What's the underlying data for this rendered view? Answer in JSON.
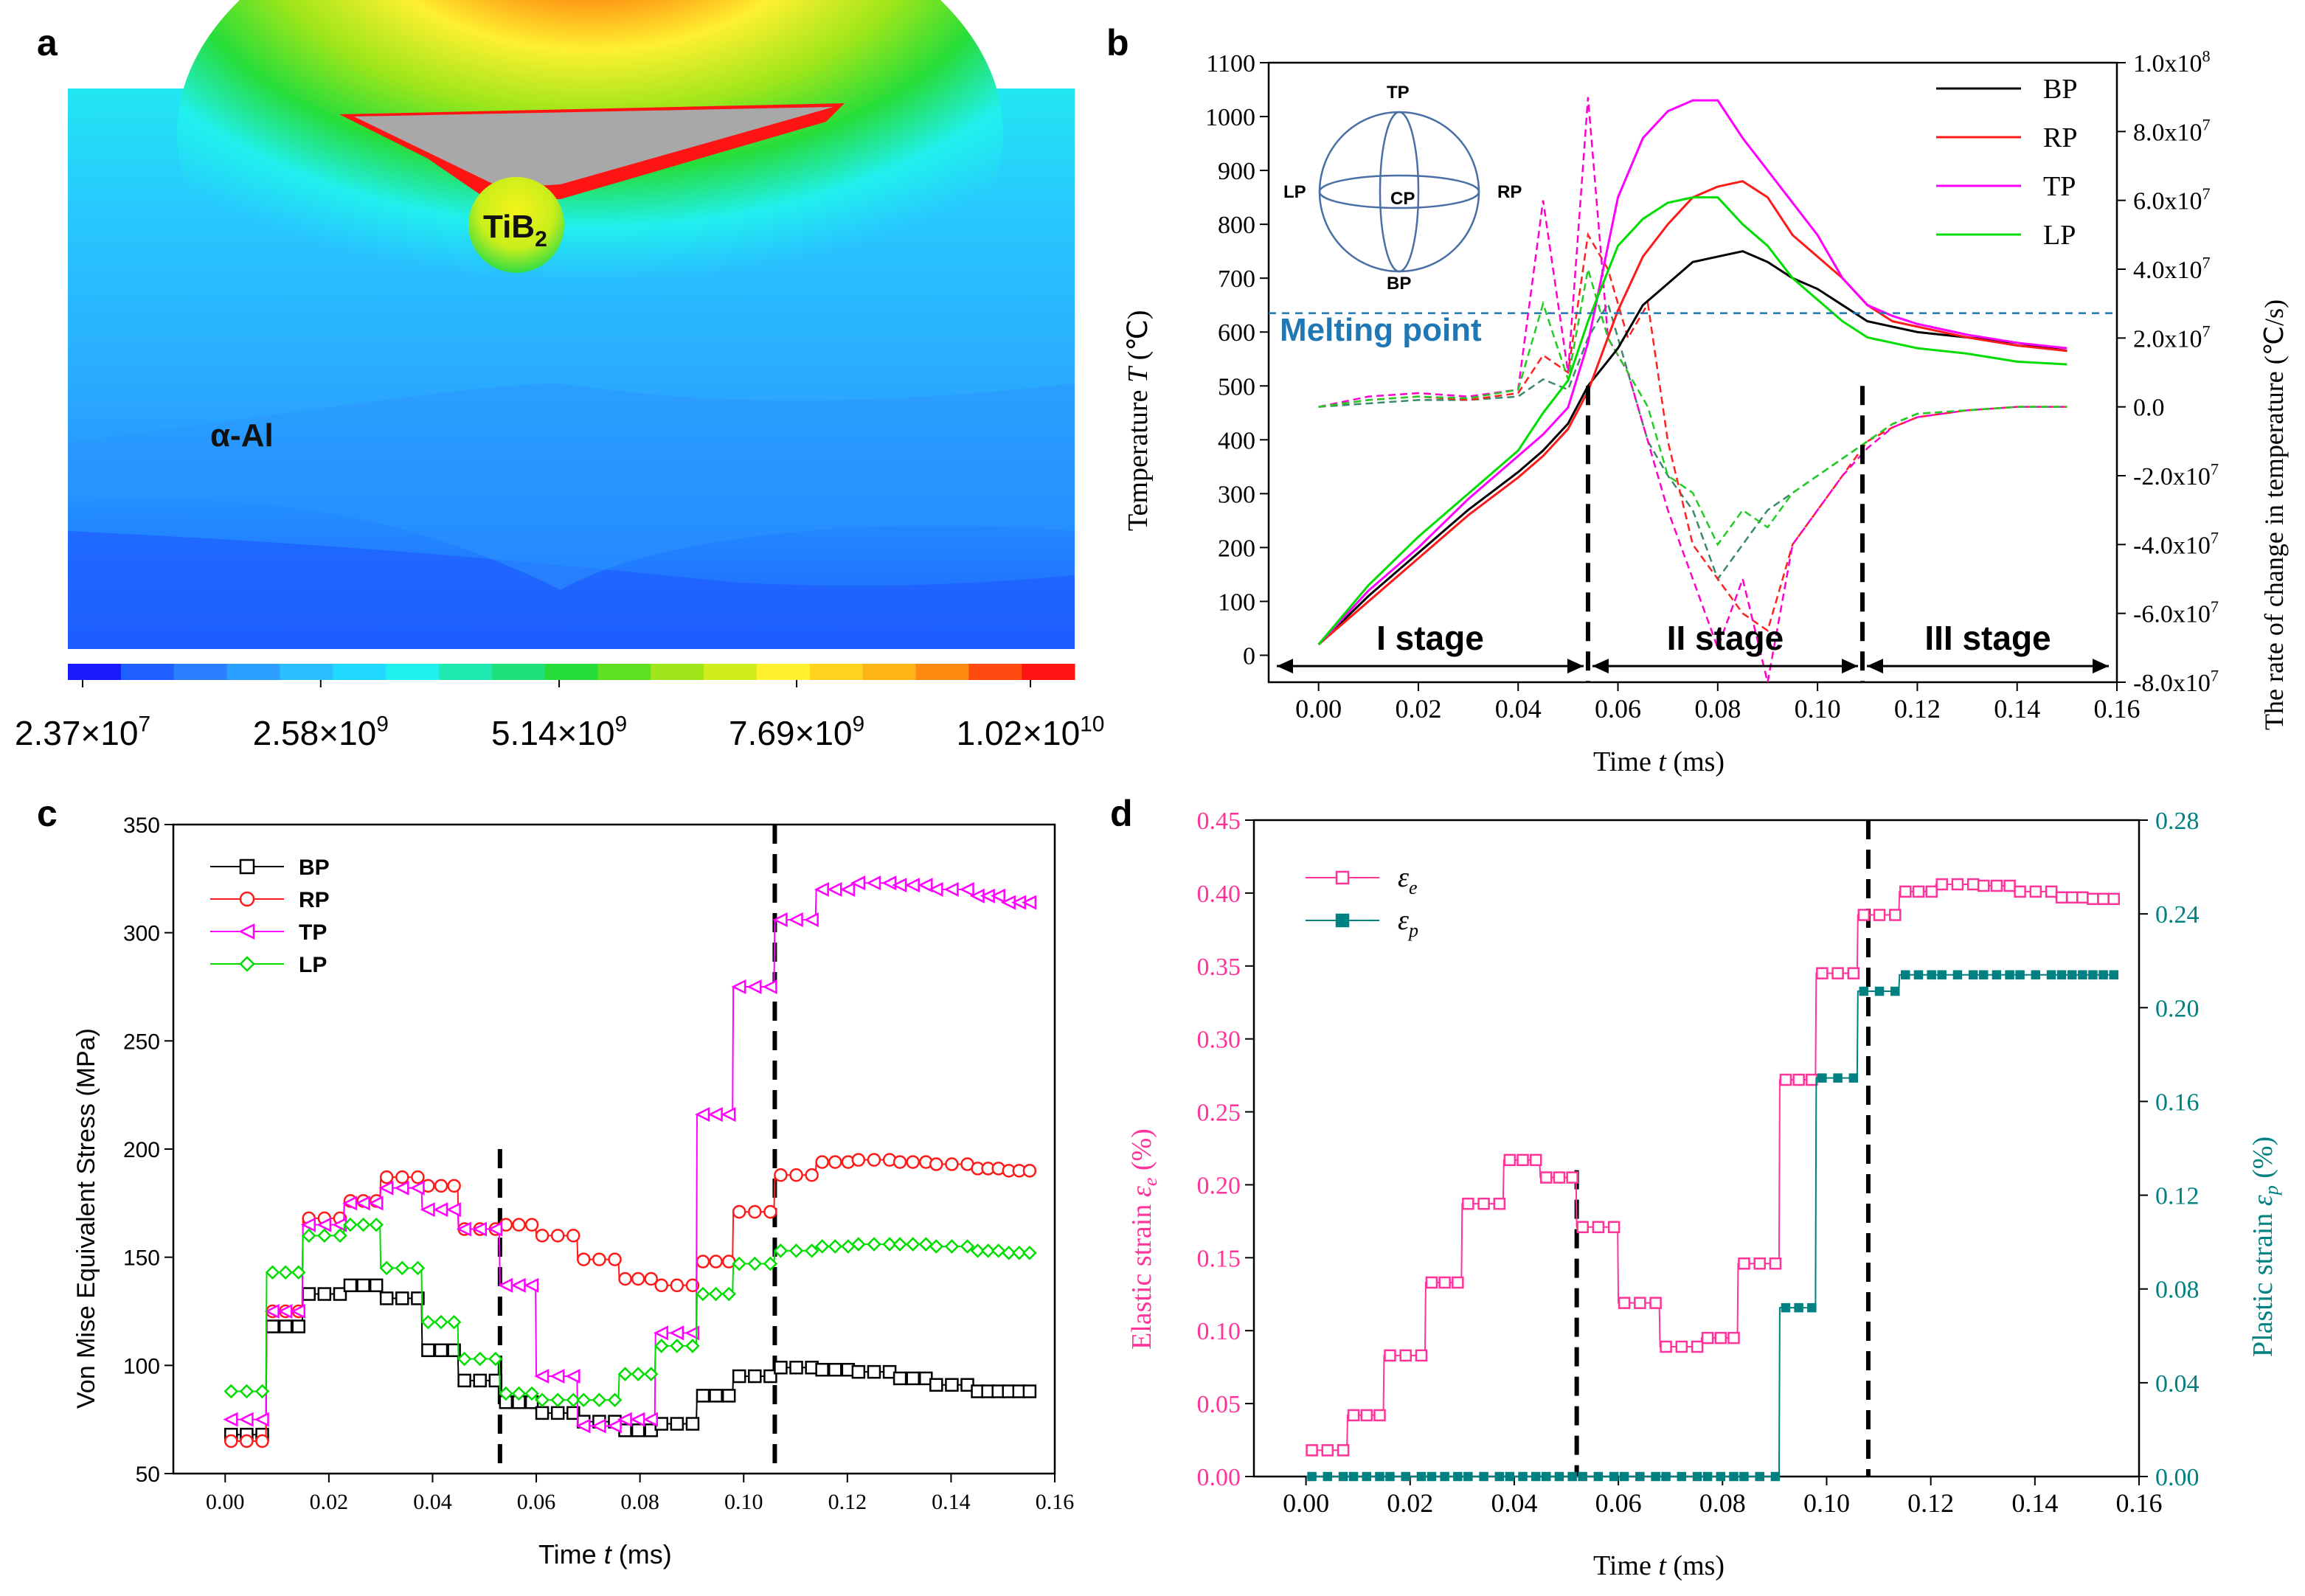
{
  "panel_labels": {
    "a": "a",
    "b": "b",
    "c": "c",
    "d": "d"
  },
  "colors": {
    "BP": "#000000",
    "RP": "#ff1a1a",
    "TP": "#ff00ff",
    "LP": "#00dd00",
    "rate_BP": "#3a8a6a",
    "rate_RP": "#ff2020",
    "rate_TP": "#ff00cc",
    "rate_LP": "#22cc22",
    "melting": "#1f77b4",
    "elastic": "#ff3399",
    "plastic": "#008080"
  },
  "chart_data": [
    {
      "panel": "a",
      "type": "heatmap",
      "labels": {
        "particle": "TiB",
        "particle_sub": "2",
        "matrix": "α-Al"
      },
      "colorbar": {
        "colors": [
          "#1a1aff",
          "#1f5fff",
          "#2a7fff",
          "#2ba0ff",
          "#29bfff",
          "#22d9ff",
          "#20f0ee",
          "#1fe8b0",
          "#20e07a",
          "#26dd3a",
          "#5fe020",
          "#9ee61a",
          "#cfee1c",
          "#fff030",
          "#ffd21e",
          "#ffb416",
          "#ff8a10",
          "#ff4a12",
          "#ff1414"
        ],
        "ticks": [
          "2.37×10",
          "2.58×10",
          "5.14×10",
          "7.69×10",
          "1.02×10"
        ],
        "exponents": [
          "7",
          "9",
          "9",
          "9",
          "10"
        ],
        "tick_values": [
          23700000.0,
          2580000000.0,
          5140000000.0,
          7690000000.0,
          10200000000.0
        ]
      }
    },
    {
      "panel": "b",
      "type": "line",
      "xlabel": "Time",
      "xlabel_var": "t",
      "xlabel_unit": "(ms)",
      "ylabel": "Temperature",
      "ylabel_var": "T",
      "ylabel_unit": "(℃)",
      "y2label": "The rate of change in temperature (℃/s)",
      "xlim": [
        -0.01,
        0.16
      ],
      "ylim": [
        -50,
        1100
      ],
      "y2lim": [
        -80000000.0,
        100000000.0
      ],
      "xticks": [
        "0.00",
        "0.02",
        "0.04",
        "0.06",
        "0.08",
        "0.10",
        "0.12",
        "0.14",
        "0.16"
      ],
      "yticks": [
        "0",
        "100",
        "200",
        "300",
        "400",
        "500",
        "600",
        "700",
        "800",
        "900",
        "1000",
        "1100"
      ],
      "y2ticks": [
        "-8.0x10",
        "-6.0x10",
        "-4.0x10",
        "-2.0x10",
        "0.0",
        "2.0x10",
        "4.0x10",
        "6.0x10",
        "8.0x10",
        "1.0x10"
      ],
      "y2tick_exp": [
        "7",
        "7",
        "7",
        "7",
        "",
        "7",
        "7",
        "7",
        "7",
        "8"
      ],
      "y2tick_values": [
        -80000000.0,
        -60000000.0,
        -40000000.0,
        -20000000.0,
        0,
        20000000.0,
        40000000.0,
        60000000.0,
        80000000.0,
        100000000.0
      ],
      "melting_point": {
        "label": "Melting point",
        "value": 635
      },
      "stage_dividers": [
        0.054,
        0.109
      ],
      "stages": [
        "I stage",
        "II stage",
        "III stage"
      ],
      "sphere_labels": {
        "top": "TP",
        "left": "LP",
        "center": "CP",
        "right": "RP",
        "bottom": "BP"
      },
      "series": [
        {
          "name": "BP",
          "x": [
            0,
            0.01,
            0.02,
            0.03,
            0.04,
            0.045,
            0.05,
            0.054,
            0.06,
            0.065,
            0.07,
            0.075,
            0.08,
            0.085,
            0.09,
            0.095,
            0.1,
            0.105,
            0.11,
            0.115,
            0.12,
            0.13,
            0.14,
            0.15
          ],
          "values": [
            20,
            110,
            190,
            270,
            340,
            380,
            430,
            500,
            570,
            650,
            690,
            730,
            740,
            750,
            730,
            700,
            680,
            650,
            620,
            610,
            600,
            590,
            580,
            565
          ]
        },
        {
          "name": "RP",
          "x": [
            0,
            0.01,
            0.02,
            0.03,
            0.04,
            0.045,
            0.05,
            0.054,
            0.06,
            0.065,
            0.07,
            0.075,
            0.08,
            0.085,
            0.09,
            0.095,
            0.1,
            0.105,
            0.11,
            0.115,
            0.12,
            0.13,
            0.14,
            0.15
          ],
          "values": [
            20,
            100,
            180,
            260,
            330,
            370,
            420,
            490,
            640,
            740,
            800,
            850,
            870,
            880,
            850,
            780,
            740,
            700,
            650,
            620,
            610,
            590,
            575,
            565
          ]
        },
        {
          "name": "TP",
          "x": [
            0,
            0.01,
            0.02,
            0.03,
            0.04,
            0.045,
            0.05,
            0.054,
            0.06,
            0.065,
            0.07,
            0.075,
            0.08,
            0.085,
            0.09,
            0.095,
            0.1,
            0.105,
            0.11,
            0.115,
            0.12,
            0.13,
            0.14,
            0.15
          ],
          "values": [
            20,
            120,
            200,
            290,
            370,
            410,
            460,
            580,
            850,
            960,
            1010,
            1030,
            1030,
            960,
            900,
            840,
            780,
            700,
            650,
            630,
            615,
            595,
            580,
            570
          ]
        },
        {
          "name": "LP",
          "x": [
            0,
            0.01,
            0.02,
            0.03,
            0.04,
            0.045,
            0.05,
            0.054,
            0.06,
            0.065,
            0.07,
            0.075,
            0.08,
            0.085,
            0.09,
            0.095,
            0.1,
            0.105,
            0.11,
            0.115,
            0.12,
            0.13,
            0.14,
            0.15
          ],
          "values": [
            20,
            130,
            220,
            300,
            380,
            450,
            510,
            620,
            760,
            810,
            840,
            850,
            850,
            800,
            760,
            700,
            660,
            620,
            590,
            580,
            570,
            560,
            545,
            540
          ]
        }
      ],
      "rate_series": [
        {
          "name": "BP",
          "x": [
            0,
            0.01,
            0.02,
            0.03,
            0.04,
            0.045,
            0.05,
            0.054,
            0.058,
            0.062,
            0.066,
            0.07,
            0.075,
            0.08,
            0.085,
            0.09,
            0.095,
            0.1,
            0.105,
            0.11,
            0.115,
            0.12,
            0.13,
            0.14,
            0.15
          ],
          "values": [
            0,
            1000000.0,
            2000000.0,
            2000000.0,
            3000000.0,
            8000000.0,
            5000000.0,
            20000000.0,
            30000000.0,
            10000000.0,
            -10000000.0,
            -20000000.0,
            -30000000.0,
            -50000000.0,
            -40000000.0,
            -30000000.0,
            -25000000.0,
            -20000000.0,
            -15000000.0,
            -10000000.0,
            -5000000.0,
            -2000000.0,
            -1000000.0,
            0,
            0
          ]
        },
        {
          "name": "RP",
          "x": [
            0,
            0.01,
            0.02,
            0.03,
            0.04,
            0.045,
            0.05,
            0.054,
            0.058,
            0.062,
            0.066,
            0.07,
            0.075,
            0.08,
            0.085,
            0.09,
            0.095,
            0.1,
            0.105,
            0.11,
            0.115,
            0.12,
            0.13,
            0.14,
            0.15
          ],
          "values": [
            0,
            2000000.0,
            3000000.0,
            2000000.0,
            4000000.0,
            15000000.0,
            10000000.0,
            50000000.0,
            40000000.0,
            20000000.0,
            30000000.0,
            -10000000.0,
            -40000000.0,
            -50000000.0,
            -60000000.0,
            -65000000.0,
            -40000000.0,
            -30000000.0,
            -20000000.0,
            -10000000.0,
            -6000000.0,
            -3000000.0,
            -1000000.0,
            0,
            0
          ]
        },
        {
          "name": "TP",
          "x": [
            0,
            0.01,
            0.02,
            0.03,
            0.04,
            0.045,
            0.05,
            0.054,
            0.058,
            0.062,
            0.066,
            0.07,
            0.075,
            0.08,
            0.085,
            0.09,
            0.095,
            0.1,
            0.105,
            0.11,
            0.115,
            0.12,
            0.13,
            0.14,
            0.15
          ],
          "values": [
            0,
            3000000.0,
            4000000.0,
            3000000.0,
            5000000.0,
            60000000.0,
            10000000.0,
            90000000.0,
            20000000.0,
            10000000.0,
            -10000000.0,
            -30000000.0,
            -50000000.0,
            -70000000.0,
            -50000000.0,
            -80000000.0,
            -40000000.0,
            -30000000.0,
            -20000000.0,
            -12000000.0,
            -6000000.0,
            -3000000.0,
            -1000000.0,
            0,
            0
          ]
        },
        {
          "name": "LP",
          "x": [
            0,
            0.01,
            0.02,
            0.03,
            0.04,
            0.045,
            0.05,
            0.054,
            0.058,
            0.062,
            0.066,
            0.07,
            0.075,
            0.08,
            0.085,
            0.09,
            0.095,
            0.1,
            0.105,
            0.11,
            0.115,
            0.12,
            0.13,
            0.14,
            0.15
          ],
          "values": [
            0,
            2000000.0,
            3000000.0,
            2500000.0,
            5000000.0,
            30000000.0,
            8000000.0,
            40000000.0,
            20000000.0,
            10000000.0,
            0,
            -20000000.0,
            -25000000.0,
            -40000000.0,
            -30000000.0,
            -35000000.0,
            -25000000.0,
            -20000000.0,
            -15000000.0,
            -10000000.0,
            -5000000.0,
            -2000000.0,
            -1000000.0,
            0,
            0
          ]
        }
      ],
      "legend": [
        "BP",
        "RP",
        "TP",
        "LP"
      ]
    },
    {
      "panel": "c",
      "type": "line",
      "xlabel": "Time",
      "xlabel_var": "t",
      "xlabel_unit": "(ms)",
      "ylabel": "Von Mise Equivalent Stress (MPa)",
      "xlim": [
        -0.01,
        0.16
      ],
      "ylim": [
        50,
        350
      ],
      "xticks": [
        "0.00",
        "0.02",
        "0.04",
        "0.06",
        "0.08",
        "0.10",
        "0.12",
        "0.14",
        "0.16"
      ],
      "yticks": [
        "50",
        "100",
        "150",
        "200",
        "250",
        "300",
        "350"
      ],
      "dividers": [
        0.053,
        0.106
      ],
      "x": [
        0.0,
        0.008,
        0.015,
        0.023,
        0.03,
        0.038,
        0.045,
        0.053,
        0.06,
        0.068,
        0.076,
        0.083,
        0.091,
        0.098,
        0.106,
        0.114,
        0.121,
        0.129,
        0.136,
        0.144,
        0.15
      ],
      "series": [
        {
          "name": "BP",
          "marker": "square",
          "values": [
            68,
            118,
            133,
            137,
            131,
            107,
            93,
            83,
            78,
            74,
            70,
            73,
            86,
            95,
            99,
            98,
            97,
            94,
            91,
            88,
            88
          ]
        },
        {
          "name": "RP",
          "marker": "circle",
          "values": [
            65,
            125,
            168,
            176,
            187,
            183,
            163,
            165,
            160,
            149,
            140,
            137,
            148,
            171,
            188,
            194,
            195,
            194,
            193,
            191,
            190
          ]
        },
        {
          "name": "TP",
          "marker": "triangle-left",
          "values": [
            75,
            125,
            165,
            175,
            182,
            172,
            163,
            137,
            95,
            72,
            75,
            115,
            216,
            275,
            306,
            320,
            323,
            322,
            320,
            317,
            314
          ]
        },
        {
          "name": "LP",
          "marker": "diamond",
          "values": [
            88,
            143,
            160,
            165,
            145,
            120,
            103,
            87,
            84,
            84,
            96,
            109,
            133,
            147,
            153,
            155,
            156,
            156,
            155,
            153,
            152
          ]
        }
      ],
      "legend": [
        "BP",
        "RP",
        "TP",
        "LP"
      ]
    },
    {
      "panel": "d",
      "type": "line",
      "xlabel": "Time",
      "xlabel_var": "t",
      "xlabel_unit": "(ms)",
      "ylabel": "Elastic strain",
      "ylabel_sym": "ε",
      "ylabel_sub": "e",
      "ylabel_unit": "(%)",
      "y2label": "Plastic strain",
      "y2label_sym": "ε",
      "y2label_sub": "p",
      "y2label_unit": "(%)",
      "xlim": [
        -0.01,
        0.16
      ],
      "ylim": [
        0.0,
        0.45
      ],
      "y2lim": [
        0.0,
        0.28
      ],
      "xticks": [
        "0.00",
        "0.02",
        "0.04",
        "0.06",
        "0.08",
        "0.10",
        "0.12",
        "0.14",
        "0.16"
      ],
      "yticks": [
        "0.00",
        "0.05",
        "0.10",
        "0.15",
        "0.20",
        "0.25",
        "0.30",
        "0.35",
        "0.40",
        "0.45"
      ],
      "y2ticks": [
        "0.00",
        "0.04",
        "0.08",
        "0.12",
        "0.16",
        "0.20",
        "0.24",
        "0.28"
      ],
      "dividers": [
        0.052,
        0.108
      ],
      "x": [
        0.0,
        0.008,
        0.015,
        0.023,
        0.03,
        0.038,
        0.045,
        0.052,
        0.06,
        0.068,
        0.076,
        0.083,
        0.091,
        0.098,
        0.106,
        0.114,
        0.121,
        0.129,
        0.136,
        0.144,
        0.15
      ],
      "series": [
        {
          "name": "εe",
          "axis": "left",
          "marker": "square",
          "values": [
            0.018,
            0.042,
            0.083,
            0.133,
            0.187,
            0.217,
            0.205,
            0.171,
            0.119,
            0.089,
            0.095,
            0.146,
            0.272,
            0.345,
            0.385,
            0.401,
            0.406,
            0.405,
            0.401,
            0.397,
            0.396
          ]
        },
        {
          "name": "εp",
          "axis": "right",
          "marker": "square-half",
          "values": [
            0.0,
            0.0,
            0.0,
            0.0,
            0.0,
            0.0,
            0.0,
            0.0,
            0.0,
            0.0,
            0.0,
            0.0,
            0.072,
            0.17,
            0.207,
            0.214,
            0.214,
            0.214,
            0.214,
            0.214,
            0.214
          ]
        }
      ],
      "legend": [
        {
          "sym": "ε",
          "sub": "e"
        },
        {
          "sym": "ε",
          "sub": "p"
        }
      ]
    }
  ]
}
